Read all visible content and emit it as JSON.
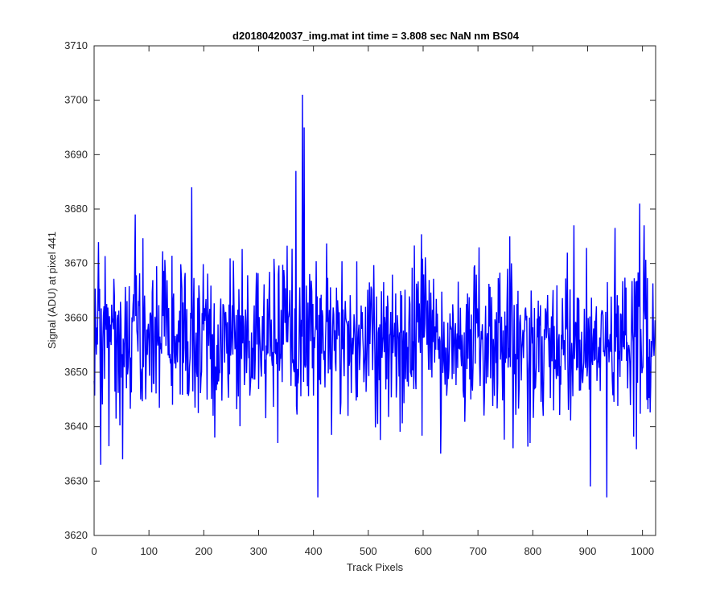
{
  "chart_data": {
    "type": "line",
    "title": "d20180420037_img.mat int time = 3.808 sec  NaN nm BS04",
    "xlabel": "Track Pixels",
    "ylabel": "Signal (ADU) at pixel 441",
    "xlim": [
      0,
      1024
    ],
    "ylim": [
      3620,
      3710
    ],
    "xticks": [
      0,
      100,
      200,
      300,
      400,
      500,
      600,
      700,
      800,
      900,
      1000
    ],
    "yticks": [
      3620,
      3630,
      3640,
      3650,
      3660,
      3670,
      3680,
      3690,
      3700,
      3710
    ],
    "grid": false,
    "series": [
      {
        "color": "#0000ff",
        "n_points": 1024,
        "mean": 3656,
        "noise_std": 7,
        "approx_range": [
          3627,
          3701
        ],
        "notable_points": [
          {
            "x": 12,
            "y": 3633
          },
          {
            "x": 52,
            "y": 3634
          },
          {
            "x": 75,
            "y": 3679
          },
          {
            "x": 178,
            "y": 3684
          },
          {
            "x": 220,
            "y": 3638
          },
          {
            "x": 335,
            "y": 3637
          },
          {
            "x": 368,
            "y": 3687
          },
          {
            "x": 380,
            "y": 3701
          },
          {
            "x": 383,
            "y": 3695
          },
          {
            "x": 408,
            "y": 3627
          },
          {
            "x": 795,
            "y": 3637
          },
          {
            "x": 905,
            "y": 3629
          },
          {
            "x": 935,
            "y": 3627
          },
          {
            "x": 995,
            "y": 3681
          },
          {
            "x": 1003,
            "y": 3677
          }
        ]
      }
    ]
  }
}
